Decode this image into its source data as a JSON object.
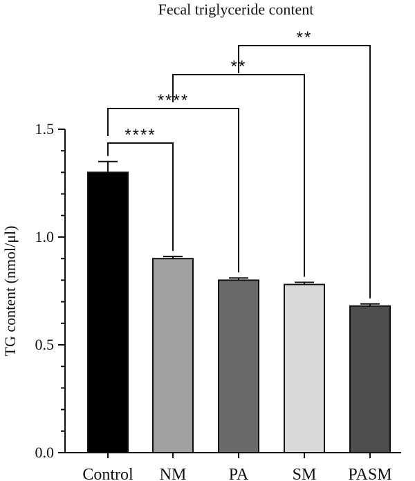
{
  "chart_data": {
    "type": "bar",
    "title": "Fecal triglyceride content",
    "xlabel": "",
    "ylabel": "TG content (nmol/μl)",
    "ylim": [
      0,
      1.5
    ],
    "yticks": [
      "0.0",
      "0.5",
      "1.0",
      "1.5"
    ],
    "categories": [
      "Control",
      "NM",
      "PA",
      "SM",
      "PASM"
    ],
    "values": [
      1.3,
      0.9,
      0.8,
      0.78,
      0.68
    ],
    "errors": [
      0.05,
      0.01,
      0.01,
      0.01,
      0.01
    ],
    "colors": [
      "#000000",
      "#a0a0a0",
      "#6a6a6a",
      "#d9d9d9",
      "#4d4d4d"
    ],
    "significance": [
      {
        "from": "Control",
        "to": "NM",
        "label": "****"
      },
      {
        "from": "Control",
        "to": "PA",
        "label": "****"
      },
      {
        "from": "NM",
        "to": "SM",
        "label": "**"
      },
      {
        "from": "PA",
        "to": "PASM",
        "label": "**"
      }
    ],
    "grid": false,
    "legend": "none"
  }
}
